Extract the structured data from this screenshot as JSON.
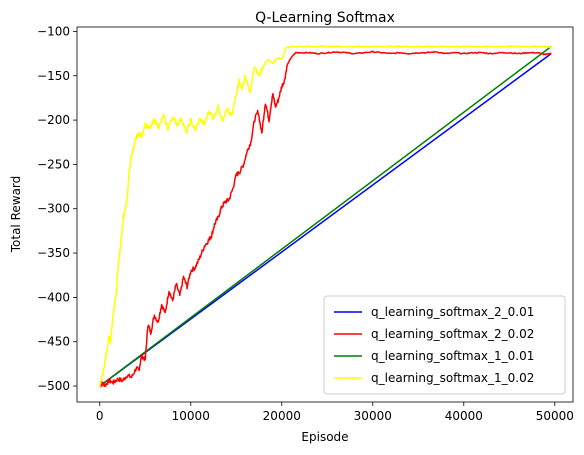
{
  "chart_data": {
    "type": "line",
    "title": "Q-Learning Softmax",
    "xlabel": "Episode",
    "ylabel": "Total Reward",
    "xlim": [
      -2500,
      52000
    ],
    "ylim": [
      -518,
      -95
    ],
    "xticks": [
      0,
      10000,
      20000,
      30000,
      40000,
      50000
    ],
    "xtick_labels": [
      "0",
      "10000",
      "20000",
      "30000",
      "40000",
      "50000"
    ],
    "yticks": [
      -500,
      -450,
      -400,
      -350,
      -300,
      -250,
      -200,
      -150,
      -100
    ],
    "ytick_labels": [
      "−500",
      "−450",
      "−400",
      "−350",
      "−300",
      "−250",
      "−200",
      "−150",
      "−100"
    ],
    "grid": false,
    "legend_position": "lower-right",
    "series": [
      {
        "name": "q_learning_softmax_2_0.01",
        "color": "#0000ff",
        "x": [
          0,
          49600
        ],
        "y": [
          -500,
          -125
        ]
      },
      {
        "name": "q_learning_softmax_2_0.02",
        "color": "#ff0000",
        "x": [
          0,
          300,
          600,
          1000,
          1500,
          2000,
          2500,
          3000,
          3500,
          4000,
          4300,
          4600,
          5000,
          5300,
          5600,
          6000,
          6400,
          6800,
          7200,
          7600,
          8000,
          8400,
          8800,
          9200,
          9600,
          10000,
          10500,
          11000,
          11500,
          12000,
          12300,
          12600,
          13000,
          13400,
          13800,
          14200,
          14600,
          15000,
          15400,
          15800,
          16200,
          16600,
          17000,
          17400,
          17800,
          18200,
          18600,
          19000,
          19300,
          19600,
          20000,
          20300,
          20600,
          21000,
          21500,
          22000,
          23000,
          24000,
          25000,
          26000,
          27000,
          28000,
          29000,
          30000,
          31000,
          32000,
          33000,
          34000,
          35000,
          36000,
          37000,
          38000,
          39000,
          40000,
          41000,
          42000,
          43000,
          44000,
          45000,
          46000,
          47000,
          48000,
          49000,
          49600
        ],
        "y": [
          -500,
          -497,
          -499,
          -494,
          -496,
          -492,
          -494,
          -488,
          -490,
          -480,
          -482,
          -466,
          -470,
          -430,
          -440,
          -420,
          -428,
          -408,
          -418,
          -392,
          -404,
          -385,
          -398,
          -377,
          -388,
          -370,
          -366,
          -355,
          -342,
          -335,
          -330,
          -318,
          -310,
          -298,
          -292,
          -290,
          -278,
          -262,
          -258,
          -250,
          -235,
          -225,
          -200,
          -190,
          -215,
          -180,
          -200,
          -170,
          -185,
          -178,
          -162,
          -155,
          -138,
          -130,
          -124,
          -124,
          -124,
          -125,
          -124,
          -123,
          -124,
          -125,
          -124,
          -123,
          -124,
          -125,
          -124,
          -125,
          -124,
          -124,
          -123,
          -125,
          -124,
          -125,
          -124,
          -124,
          -125,
          -124,
          -124,
          -125,
          -124,
          -124,
          -126,
          -125
        ]
      },
      {
        "name": "q_learning_softmax_1_0.01",
        "color": "#008000",
        "x": [
          0,
          49600
        ],
        "y": [
          -500,
          -117
        ]
      },
      {
        "name": "q_learning_softmax_1_0.02",
        "color": "#ffff00",
        "x": [
          0,
          200,
          400,
          600,
          800,
          1000,
          1200,
          1400,
          1600,
          1800,
          2000,
          2200,
          2400,
          2600,
          2800,
          3000,
          3200,
          3400,
          3600,
          3800,
          4000,
          4300,
          4600,
          5000,
          5500,
          6000,
          6500,
          7000,
          7500,
          8000,
          8500,
          9000,
          9500,
          10000,
          10500,
          11000,
          11500,
          12000,
          12500,
          13000,
          13500,
          14000,
          14500,
          15000,
          15300,
          15600,
          16000,
          16500,
          17000,
          17500,
          18000,
          18500,
          19000,
          19500,
          20000,
          20500,
          21000,
          22000,
          23000,
          24000,
          25000,
          26000,
          27000,
          28000,
          29000,
          30000,
          31000,
          32000,
          33000,
          34000,
          35000,
          36000,
          37000,
          38000,
          39000,
          40000,
          41000,
          42000,
          43000,
          44000,
          45000,
          46000,
          47000,
          48000,
          49000,
          49600
        ],
        "y": [
          -500,
          -490,
          -485,
          -470,
          -460,
          -445,
          -450,
          -425,
          -410,
          -395,
          -368,
          -350,
          -330,
          -310,
          -300,
          -290,
          -262,
          -245,
          -235,
          -228,
          -220,
          -215,
          -218,
          -205,
          -210,
          -200,
          -208,
          -195,
          -210,
          -196,
          -205,
          -198,
          -215,
          -200,
          -212,
          -198,
          -205,
          -190,
          -198,
          -185,
          -200,
          -188,
          -196,
          -170,
          -155,
          -165,
          -150,
          -170,
          -140,
          -150,
          -138,
          -132,
          -136,
          -130,
          -131,
          -118,
          -117,
          -117,
          -117,
          -117,
          -117,
          -117,
          -117,
          -117,
          -117,
          -117,
          -117,
          -117,
          -117,
          -117,
          -117,
          -117,
          -117,
          -117,
          -117,
          -117,
          -117,
          -117,
          -117,
          -117,
          -117,
          -117,
          -117,
          -117,
          -117,
          -118
        ]
      }
    ]
  }
}
